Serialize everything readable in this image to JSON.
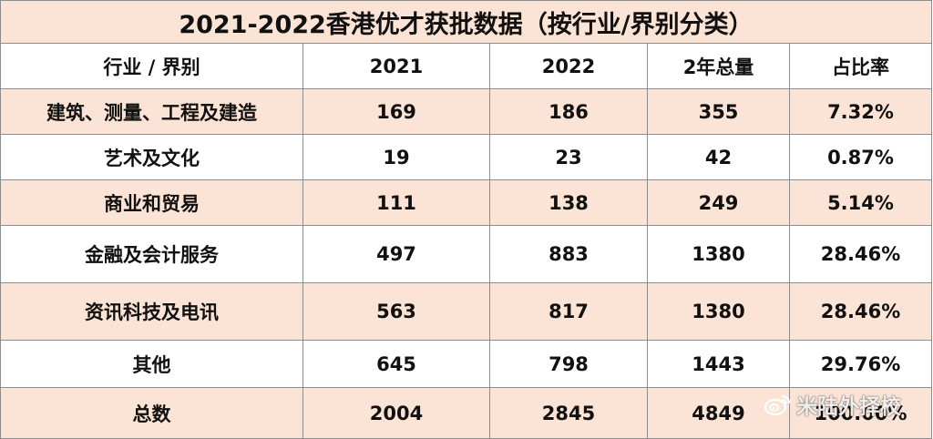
{
  "title": "2021-2022香港优才获批数据（按行业/界别分类）",
  "headers": [
    "行业 / 界别",
    "2021",
    "2022",
    "2年总量",
    "占比率"
  ],
  "rows": [
    {
      "sector": "建筑、测量、工程及建造",
      "y2021": "169",
      "y2022": "186",
      "total": "355",
      "share": "7.32%"
    },
    {
      "sector": "艺术及文化",
      "y2021": "19",
      "y2022": "23",
      "total": "42",
      "share": "0.87%"
    },
    {
      "sector": "商业和贸易",
      "y2021": "111",
      "y2022": "138",
      "total": "249",
      "share": "5.14%"
    },
    {
      "sector": "金融及会计服务",
      "y2021": "497",
      "y2022": "883",
      "total": "1380",
      "share": "28.46%"
    },
    {
      "sector": "资讯科技及电讯",
      "y2021": "563",
      "y2022": "817",
      "total": "1380",
      "share": "28.46%"
    },
    {
      "sector": "其他",
      "y2021": "645",
      "y2022": "798",
      "total": "1443",
      "share": "29.76%"
    },
    {
      "sector": "总数",
      "y2021": "2004",
      "y2022": "2845",
      "total": "4849",
      "share": "100.00%"
    }
  ],
  "watermark": {
    "text": "米陆外择校",
    "icon": "weibo-icon"
  },
  "colors": {
    "peach": "#fbe4d5",
    "white": "#ffffff",
    "border": "#8c8c8c"
  }
}
